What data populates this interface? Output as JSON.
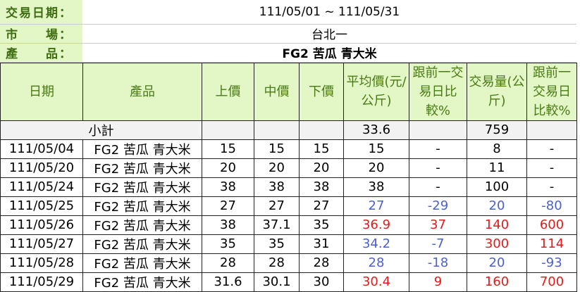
{
  "info": [
    {
      "label": "交易日期：",
      "value": "111/05/01 ~ 111/05/31"
    },
    {
      "label": "市　　場：",
      "value": "台北一"
    },
    {
      "label": "產　　品：",
      "value": "FG2 苦瓜 青大米"
    }
  ],
  "headers": [
    "日期",
    "產品",
    "上價",
    "中價",
    "下價",
    "平均價(元/公斤)",
    "跟前一交易日比較%",
    "交易量(公斤)",
    "跟前一交易日比較%"
  ],
  "subtotal": {
    "label": "小計",
    "avg": "33.6",
    "volume": "759"
  },
  "colors": {
    "header_bg": "#e3f6c6",
    "header_text": "#4a7a14",
    "up": "#e41a1a",
    "down": "#4a5fd6"
  },
  "rows": [
    {
      "date": "111/05/04",
      "product": "FG2 苦瓜 青大米",
      "high": "15",
      "mid": "15",
      "low": "15",
      "avg": "15",
      "avg_cmp": "-",
      "vol": "8",
      "vol_cmp": "-",
      "avg_dir": "",
      "vol_dir": ""
    },
    {
      "date": "111/05/20",
      "product": "FG2 苦瓜 青大米",
      "high": "20",
      "mid": "20",
      "low": "20",
      "avg": "20",
      "avg_cmp": "-",
      "vol": "11",
      "vol_cmp": "-",
      "avg_dir": "",
      "vol_dir": ""
    },
    {
      "date": "111/05/24",
      "product": "FG2 苦瓜 青大米",
      "high": "38",
      "mid": "38",
      "low": "38",
      "avg": "38",
      "avg_cmp": "-",
      "vol": "100",
      "vol_cmp": "-",
      "avg_dir": "",
      "vol_dir": ""
    },
    {
      "date": "111/05/25",
      "product": "FG2 苦瓜 青大米",
      "high": "27",
      "mid": "27",
      "low": "27",
      "avg": "27",
      "avg_cmp": "-29",
      "vol": "20",
      "vol_cmp": "-80",
      "avg_dir": "blue",
      "vol_dir": "blue"
    },
    {
      "date": "111/05/26",
      "product": "FG2 苦瓜 青大米",
      "high": "38",
      "mid": "37.1",
      "low": "35",
      "avg": "36.9",
      "avg_cmp": "37",
      "vol": "140",
      "vol_cmp": "600",
      "avg_dir": "red",
      "vol_dir": "red"
    },
    {
      "date": "111/05/27",
      "product": "FG2 苦瓜 青大米",
      "high": "35",
      "mid": "35",
      "low": "31",
      "avg": "34.2",
      "avg_cmp": "-7",
      "vol": "300",
      "vol_cmp": "114",
      "avg_dir": "blue",
      "vol_dir": "red"
    },
    {
      "date": "111/05/28",
      "product": "FG2 苦瓜 青大米",
      "high": "28",
      "mid": "28",
      "low": "28",
      "avg": "28",
      "avg_cmp": "-18",
      "vol": "20",
      "vol_cmp": "-93",
      "avg_dir": "blue",
      "vol_dir": "blue"
    },
    {
      "date": "111/05/29",
      "product": "FG2 苦瓜 青大米",
      "high": "31.6",
      "mid": "30.1",
      "low": "30",
      "avg": "30.4",
      "avg_cmp": "9",
      "vol": "160",
      "vol_cmp": "700",
      "avg_dir": "red",
      "vol_dir": "red"
    }
  ]
}
